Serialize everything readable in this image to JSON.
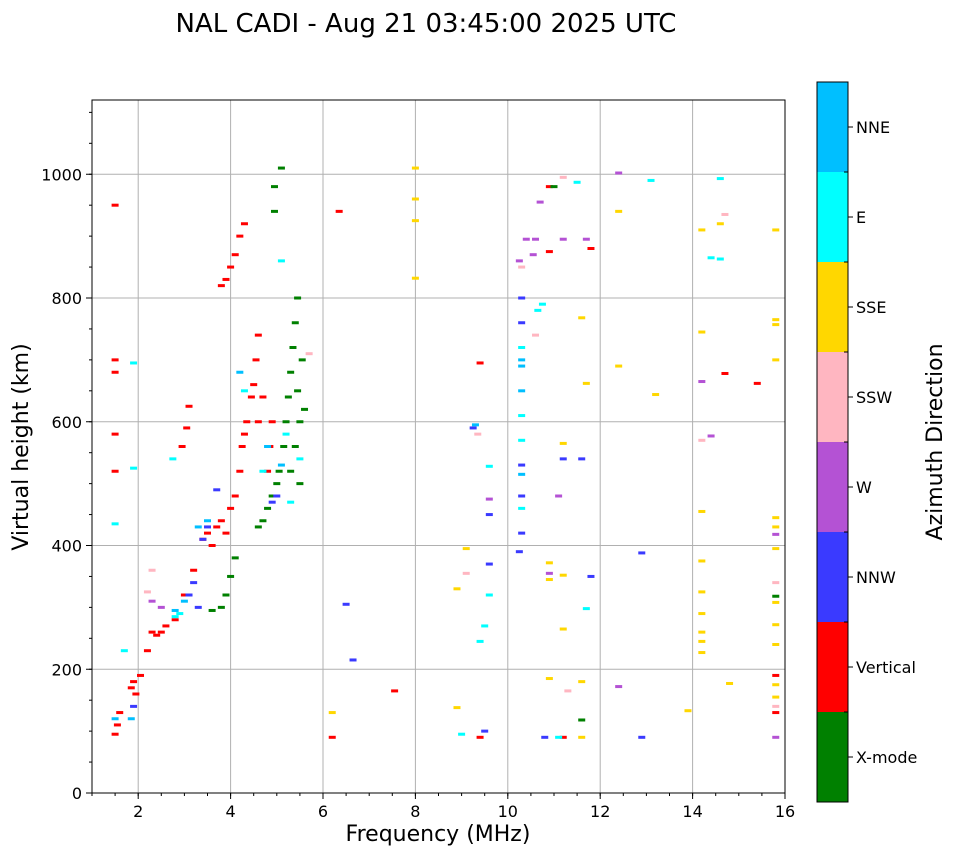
{
  "chart_data": {
    "type": "scatter",
    "title": "NAL CADI - Aug 21 03:45:00 2025 UTC",
    "xlabel": "Frequency (MHz)",
    "ylabel": "Virtual height (km)",
    "xlim": [
      1,
      16
    ],
    "ylim": [
      0,
      1120
    ],
    "xticks": [
      2,
      4,
      6,
      8,
      10,
      12,
      14,
      16
    ],
    "yticks": [
      0,
      200,
      400,
      600,
      800,
      1000
    ],
    "xtick_labels": [
      "2",
      "4",
      "6",
      "8",
      "10",
      "12",
      "14",
      "16"
    ],
    "ytick_labels": [
      "0",
      "200",
      "400",
      "600",
      "800",
      "1000"
    ],
    "grid": true,
    "colorbar": {
      "label": "Azimuth Direction",
      "categories": [
        "X-mode",
        "Vertical",
        "NNW",
        "W",
        "SSW",
        "SSE",
        "E",
        "NNE"
      ],
      "colors": [
        "#008000",
        "#ff0000",
        "#3a3aff",
        "#b452d4",
        "#ffb6c1",
        "#ffd700",
        "#00ffff",
        "#00bfff"
      ]
    },
    "traces": [
      {
        "category": "Vertical",
        "points": [
          [
            1.5,
            95
          ],
          [
            1.55,
            110
          ],
          [
            1.6,
            130
          ],
          [
            1.85,
            170
          ],
          [
            1.9,
            180
          ],
          [
            1.95,
            160
          ],
          [
            2.05,
            190
          ],
          [
            2.2,
            230
          ],
          [
            2.3,
            260
          ],
          [
            2.4,
            255
          ],
          [
            2.5,
            260
          ],
          [
            2.6,
            270
          ],
          [
            2.8,
            280
          ],
          [
            3.0,
            320
          ],
          [
            3.2,
            360
          ],
          [
            3.4,
            410
          ],
          [
            3.5,
            420
          ],
          [
            3.6,
            400
          ],
          [
            3.7,
            430
          ],
          [
            3.8,
            440
          ],
          [
            3.9,
            420
          ],
          [
            4.0,
            460
          ],
          [
            4.1,
            480
          ],
          [
            4.2,
            520
          ],
          [
            4.25,
            560
          ],
          [
            4.3,
            580
          ],
          [
            4.35,
            600
          ],
          [
            4.45,
            640
          ],
          [
            4.5,
            660
          ],
          [
            4.55,
            700
          ],
          [
            4.6,
            740
          ],
          [
            3.8,
            820
          ],
          [
            3.9,
            830
          ],
          [
            4.0,
            850
          ],
          [
            4.1,
            870
          ],
          [
            4.2,
            900
          ],
          [
            4.3,
            920
          ],
          [
            1.5,
            700
          ],
          [
            1.5,
            680
          ],
          [
            1.5,
            580
          ],
          [
            1.5,
            520
          ],
          [
            1.5,
            950
          ],
          [
            3.1,
            625
          ],
          [
            2.95,
            560
          ],
          [
            3.05,
            590
          ],
          [
            4.8,
            520
          ],
          [
            4.85,
            560
          ],
          [
            4.9,
            600
          ],
          [
            4.6,
            600
          ],
          [
            4.7,
            640
          ],
          [
            6.35,
            940
          ],
          [
            7.55,
            165
          ],
          [
            6.2,
            90
          ],
          [
            9.4,
            695
          ],
          [
            9.4,
            90
          ],
          [
            11.2,
            90
          ],
          [
            15.8,
            190
          ],
          [
            15.8,
            130
          ],
          [
            14.7,
            678
          ],
          [
            15.4,
            662
          ],
          [
            10.9,
            875
          ],
          [
            11.8,
            880
          ],
          [
            10.9,
            980
          ]
        ]
      },
      {
        "category": "X-mode",
        "points": [
          [
            3.6,
            295
          ],
          [
            3.8,
            300
          ],
          [
            3.9,
            320
          ],
          [
            4.0,
            350
          ],
          [
            4.1,
            380
          ],
          [
            4.6,
            430
          ],
          [
            4.7,
            440
          ],
          [
            4.8,
            460
          ],
          [
            4.9,
            480
          ],
          [
            5.0,
            500
          ],
          [
            5.05,
            520
          ],
          [
            5.15,
            560
          ],
          [
            5.2,
            600
          ],
          [
            5.25,
            640
          ],
          [
            5.3,
            680
          ],
          [
            5.35,
            720
          ],
          [
            5.4,
            760
          ],
          [
            5.45,
            800
          ],
          [
            5.4,
            560
          ],
          [
            5.5,
            600
          ],
          [
            5.45,
            650
          ],
          [
            5.6,
            620
          ],
          [
            5.55,
            700
          ],
          [
            5.3,
            520
          ],
          [
            5.5,
            500
          ],
          [
            4.95,
            980
          ],
          [
            5.1,
            1010
          ],
          [
            4.95,
            940
          ],
          [
            11.6,
            118
          ],
          [
            15.8,
            318
          ],
          [
            11.0,
            980
          ]
        ]
      },
      {
        "category": "NNW",
        "points": [
          [
            3.1,
            320
          ],
          [
            3.2,
            340
          ],
          [
            3.3,
            300
          ],
          [
            3.4,
            410
          ],
          [
            3.5,
            430
          ],
          [
            3.7,
            490
          ],
          [
            1.9,
            140
          ],
          [
            4.9,
            470
          ],
          [
            5.0,
            480
          ],
          [
            6.5,
            305
          ],
          [
            6.65,
            215
          ],
          [
            9.5,
            100
          ],
          [
            9.6,
            450
          ],
          [
            9.6,
            370
          ],
          [
            10.25,
            390
          ],
          [
            10.3,
            420
          ],
          [
            10.3,
            480
          ],
          [
            10.3,
            530
          ],
          [
            10.3,
            760
          ],
          [
            10.3,
            800
          ],
          [
            10.8,
            90
          ],
          [
            11.2,
            540
          ],
          [
            11.6,
            540
          ],
          [
            11.8,
            350
          ],
          [
            12.9,
            388
          ],
          [
            12.9,
            90
          ],
          [
            9.25,
            590
          ]
        ]
      },
      {
        "category": "W",
        "points": [
          [
            2.3,
            310
          ],
          [
            2.5,
            300
          ],
          [
            9.6,
            475
          ],
          [
            10.25,
            860
          ],
          [
            10.4,
            895
          ],
          [
            10.6,
            895
          ],
          [
            10.7,
            955
          ],
          [
            11.1,
            480
          ],
          [
            11.2,
            895
          ],
          [
            11.7,
            895
          ],
          [
            12.4,
            172
          ],
          [
            12.4,
            1002
          ],
          [
            14.2,
            665
          ],
          [
            14.4,
            577
          ],
          [
            15.8,
            90
          ],
          [
            15.8,
            418
          ],
          [
            10.9,
            355
          ],
          [
            10.55,
            870
          ]
        ]
      },
      {
        "category": "SSW",
        "points": [
          [
            2.3,
            360
          ],
          [
            2.2,
            325
          ],
          [
            5.7,
            710
          ],
          [
            9.1,
            355
          ],
          [
            9.35,
            580
          ],
          [
            10.3,
            850
          ],
          [
            10.6,
            740
          ],
          [
            11.3,
            165
          ],
          [
            11.2,
            995
          ],
          [
            14.2,
            570
          ],
          [
            14.7,
            935
          ],
          [
            15.8,
            340
          ],
          [
            15.8,
            140
          ]
        ]
      },
      {
        "category": "SSE",
        "points": [
          [
            8.0,
            1010
          ],
          [
            8.0,
            960
          ],
          [
            8.0,
            925
          ],
          [
            8.0,
            832
          ],
          [
            8.9,
            138
          ],
          [
            8.9,
            330
          ],
          [
            9.1,
            395
          ],
          [
            10.9,
            185
          ],
          [
            10.9,
            345
          ],
          [
            10.9,
            372
          ],
          [
            11.2,
            265
          ],
          [
            11.2,
            352
          ],
          [
            11.2,
            565
          ],
          [
            11.6,
            180
          ],
          [
            11.6,
            90
          ],
          [
            11.6,
            768
          ],
          [
            11.7,
            662
          ],
          [
            12.4,
            940
          ],
          [
            12.4,
            690
          ],
          [
            13.2,
            644
          ],
          [
            13.9,
            133
          ],
          [
            14.2,
            910
          ],
          [
            14.2,
            745
          ],
          [
            14.2,
            455
          ],
          [
            14.2,
            375
          ],
          [
            14.2,
            325
          ],
          [
            14.2,
            290
          ],
          [
            14.2,
            260
          ],
          [
            14.2,
            245
          ],
          [
            14.2,
            227
          ],
          [
            14.6,
            920
          ],
          [
            14.8,
            177
          ],
          [
            15.8,
            910
          ],
          [
            15.8,
            765
          ],
          [
            15.8,
            757
          ],
          [
            15.8,
            700
          ],
          [
            15.8,
            445
          ],
          [
            15.8,
            430
          ],
          [
            15.8,
            395
          ],
          [
            15.8,
            308
          ],
          [
            15.8,
            272
          ],
          [
            15.8,
            240
          ],
          [
            15.8,
            175
          ],
          [
            15.8,
            155
          ],
          [
            6.2,
            130
          ]
        ]
      },
      {
        "category": "E",
        "points": [
          [
            1.5,
            435
          ],
          [
            1.7,
            230
          ],
          [
            1.9,
            695
          ],
          [
            1.9,
            525
          ],
          [
            2.75,
            540
          ],
          [
            2.9,
            290
          ],
          [
            2.8,
            285
          ],
          [
            4.3,
            650
          ],
          [
            4.7,
            520
          ],
          [
            5.1,
            860
          ],
          [
            5.2,
            580
          ],
          [
            5.3,
            470
          ],
          [
            5.5,
            540
          ],
          [
            9.0,
            95
          ],
          [
            9.4,
            245
          ],
          [
            9.5,
            270
          ],
          [
            9.6,
            528
          ],
          [
            9.6,
            320
          ],
          [
            10.3,
            570
          ],
          [
            10.3,
            460
          ],
          [
            10.65,
            780
          ],
          [
            10.75,
            790
          ],
          [
            11.5,
            987
          ],
          [
            11.7,
            298
          ],
          [
            11.1,
            90
          ],
          [
            14.4,
            865
          ],
          [
            14.6,
            863
          ],
          [
            14.6,
            993
          ],
          [
            13.1,
            990
          ],
          [
            10.3,
            720
          ],
          [
            10.3,
            610
          ]
        ]
      },
      {
        "category": "NNE",
        "points": [
          [
            1.5,
            120
          ],
          [
            1.85,
            120
          ],
          [
            2.8,
            295
          ],
          [
            3.0,
            310
          ],
          [
            3.3,
            430
          ],
          [
            3.5,
            440
          ],
          [
            4.2,
            680
          ],
          [
            4.8,
            560
          ],
          [
            5.1,
            530
          ],
          [
            10.3,
            650
          ],
          [
            10.3,
            690
          ],
          [
            10.3,
            700
          ],
          [
            10.3,
            515
          ],
          [
            9.3,
            595
          ]
        ]
      }
    ]
  }
}
